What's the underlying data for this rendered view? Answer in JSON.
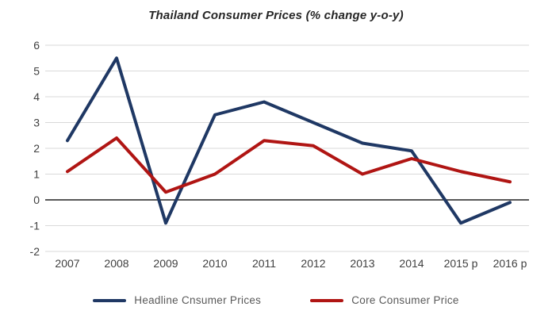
{
  "chart_data": {
    "type": "line",
    "title": "Thailand Consumer Prices (% change y-o-y)",
    "categories": [
      "2007",
      "2008",
      "2009",
      "2010",
      "2011",
      "2012",
      "2013",
      "2014",
      "2015 p",
      "2016 p"
    ],
    "series": [
      {
        "name": "Headline Cnsumer Prices",
        "color": "#1f3864",
        "values": [
          2.3,
          5.5,
          -0.9,
          3.3,
          3.8,
          3.0,
          2.2,
          1.9,
          -0.9,
          -0.1
        ]
      },
      {
        "name": "Core Consumer Price",
        "color": "#b01513",
        "values": [
          1.1,
          2.4,
          0.3,
          1.0,
          2.3,
          2.1,
          1.0,
          1.6,
          1.1,
          0.7
        ]
      }
    ],
    "ylim": [
      -2,
      6
    ],
    "yticks": [
      6,
      5,
      4,
      3,
      2,
      1,
      0,
      -1,
      -2
    ],
    "grid": true,
    "zero_baseline": true,
    "legend_position": "bottom",
    "xlabel": "",
    "ylabel": ""
  },
  "colors": {
    "gridline": "#d9d9d9",
    "zero_line": "#404040",
    "tick_label": "#404040",
    "title_text": "#262626",
    "legend_text": "#595959"
  }
}
